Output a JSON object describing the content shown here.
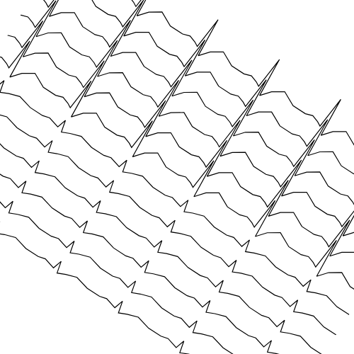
{
  "chart_data": {
    "type": "line",
    "x": [
      0,
      0.1,
      0.2,
      0.26,
      0.3,
      0.34,
      0.45,
      0.6,
      0.8,
      1,
      1.1,
      1.2,
      1.26,
      1.3,
      1.34,
      1.45,
      1.6,
      1.8,
      2,
      2.1,
      2.2,
      2.26,
      2.3,
      2.34,
      2.45,
      2.6,
      2.8,
      3,
      3.1,
      3.2,
      3.26,
      3.3,
      3.34,
      3.45,
      3.6,
      3.8,
      4,
      4.1,
      4.2,
      4.26,
      4.3,
      4.34,
      4.45,
      4.6,
      4.8,
      5,
      5.1,
      5.2,
      5.26,
      5.3,
      5.34,
      5.45,
      5.6,
      5.8,
      6
    ],
    "xlim": [
      0,
      6
    ],
    "ylim": [
      -1,
      12.8
    ],
    "grid": false,
    "tick_labels": false,
    "series": [
      {
        "color": "#000000",
        "values": [
          11,
          11.1,
          11,
          10.9,
          12.3,
          10.6,
          11,
          11.3,
          11,
          11,
          11.1,
          11,
          10.9,
          12.3,
          10.6,
          11,
          11.3,
          11,
          11,
          11.1,
          11,
          10.9,
          12.3,
          10.6,
          11,
          11.3,
          11,
          11,
          11.1,
          11,
          10.9,
          12.3,
          10.6,
          11,
          11.3,
          11,
          11,
          11.1,
          11,
          10.9,
          12.3,
          10.6,
          11,
          11.3,
          11,
          11,
          11.1,
          11,
          10.9,
          12.3,
          10.6,
          11,
          11.3,
          11,
          11
        ]
      },
      {
        "color": "#000000",
        "values": [
          10,
          10.1,
          10,
          9.9,
          11.3,
          9.6,
          10,
          10.3,
          10,
          10,
          10.1,
          10,
          9.9,
          11.3,
          9.6,
          10,
          10.3,
          10,
          10,
          10.1,
          10,
          9.9,
          11.3,
          9.6,
          10,
          10.3,
          10,
          10,
          10.1,
          10,
          9.9,
          11.3,
          9.6,
          10,
          10.3,
          10,
          10,
          10.1,
          10,
          9.9,
          11.3,
          9.6,
          10,
          10.3,
          10,
          10,
          10.1,
          10,
          9.9,
          11.3,
          9.6,
          10,
          10.3,
          10,
          10
        ]
      },
      {
        "color": "#000000",
        "values": [
          9,
          9.1,
          9,
          8.9,
          10.3,
          8.6,
          9,
          9.3,
          9,
          9,
          9.1,
          9,
          8.9,
          10.3,
          8.6,
          9,
          9.3,
          9,
          9,
          9.1,
          9,
          8.9,
          10.3,
          8.6,
          9,
          9.3,
          9,
          9,
          9.1,
          9,
          8.9,
          10.3,
          8.6,
          9,
          9.3,
          9,
          9,
          9.1,
          9,
          8.9,
          10.3,
          8.6,
          9,
          9.3,
          9,
          9,
          9.1,
          9,
          8.9,
          10.3,
          8.6,
          9,
          9.3,
          9,
          9
        ]
      },
      {
        "color": "#000000",
        "values": [
          8,
          8.1,
          8,
          7.9,
          9.3,
          7.6,
          8,
          8.3,
          8,
          8,
          8.1,
          8,
          7.9,
          9.3,
          7.6,
          8,
          8.3,
          8,
          8,
          8.1,
          8,
          7.9,
          9.3,
          7.6,
          8,
          8.3,
          8,
          8,
          8.1,
          8,
          7.9,
          9.3,
          7.6,
          8,
          8.3,
          8,
          8,
          8.1,
          8,
          7.9,
          9.3,
          7.6,
          8,
          8.3,
          8,
          8,
          8.1,
          8,
          7.9,
          9.3,
          7.6,
          8,
          8.3,
          8,
          8
        ]
      },
      {
        "color": "#000000",
        "values": [
          7,
          7.1,
          7,
          6.9,
          8.3,
          6.6,
          7,
          7.3,
          7,
          7,
          7.1,
          7,
          6.9,
          8.3,
          6.6,
          7,
          7.3,
          7,
          7,
          7.1,
          7,
          6.9,
          8.3,
          6.6,
          7,
          7.3,
          7,
          7,
          7.1,
          7,
          6.9,
          8.3,
          6.6,
          7,
          7.3,
          7,
          7,
          7.1,
          7,
          6.9,
          8.3,
          6.6,
          7,
          7.3,
          7,
          7,
          7.1,
          7,
          6.9,
          8.3,
          6.6,
          7,
          7.3,
          7,
          7
        ]
      },
      {
        "color": "#000000",
        "values": [
          6,
          6.1,
          6,
          5.9,
          7.3,
          5.6,
          6,
          6.3,
          6,
          6,
          6.1,
          6,
          5.9,
          7.3,
          5.6,
          6,
          6.3,
          6,
          6,
          6.1,
          6,
          5.9,
          7.3,
          5.6,
          6,
          6.3,
          6,
          6,
          6.1,
          6,
          5.9,
          7.3,
          5.6,
          6,
          6.3,
          6,
          6,
          6.1,
          6,
          5.9,
          7.3,
          5.6,
          6,
          6.3,
          6,
          6,
          6.1,
          6,
          5.9,
          7.3,
          5.6,
          6,
          6.3,
          6,
          6
        ]
      },
      {
        "color": "#000000",
        "values": [
          5,
          5.08,
          5,
          4.95,
          5.35,
          4.85,
          5,
          5.15,
          5,
          5,
          5.08,
          5,
          4.95,
          5.35,
          4.85,
          5,
          5.15,
          5,
          5,
          5.08,
          5,
          4.95,
          5.35,
          4.85,
          5,
          5.15,
          5,
          5,
          5.08,
          5,
          4.95,
          5.35,
          4.85,
          5,
          5.15,
          5,
          5,
          5.08,
          5,
          4.95,
          5.35,
          4.85,
          5,
          5.15,
          5,
          5,
          5.08,
          5,
          4.95,
          5.35,
          4.85,
          5,
          5.15,
          5,
          5
        ]
      },
      {
        "color": "#000000",
        "values": [
          4,
          4.08,
          4,
          3.95,
          4.35,
          3.85,
          4,
          4.15,
          4,
          4,
          4.08,
          4,
          3.95,
          4.35,
          3.85,
          4,
          4.15,
          4,
          4,
          4.08,
          4,
          3.95,
          4.35,
          3.85,
          4,
          4.15,
          4,
          4,
          4.08,
          4,
          3.95,
          4.35,
          3.85,
          4,
          4.15,
          4,
          4,
          4.08,
          4,
          3.95,
          4.35,
          3.85,
          4,
          4.15,
          4,
          4,
          4.08,
          4,
          3.95,
          4.35,
          3.85,
          4,
          4.15,
          4,
          4
        ]
      },
      {
        "color": "#000000",
        "values": [
          3,
          3.08,
          3,
          2.95,
          3.35,
          2.85,
          3,
          3.15,
          3,
          3,
          3.08,
          3,
          2.95,
          3.35,
          2.85,
          3,
          3.15,
          3,
          3,
          3.08,
          3,
          2.95,
          3.35,
          2.85,
          3,
          3.15,
          3,
          3,
          3.08,
          3,
          2.95,
          3.35,
          2.85,
          3,
          3.15,
          3,
          3,
          3.08,
          3,
          2.95,
          3.35,
          2.85,
          3,
          3.15,
          3,
          3,
          3.08,
          3,
          2.95,
          3.35,
          2.85,
          3,
          3.15,
          3,
          3
        ]
      },
      {
        "color": "#000000",
        "values": [
          2,
          2.08,
          2,
          1.95,
          2.35,
          1.85,
          2,
          2.15,
          2,
          2,
          2.08,
          2,
          1.95,
          2.35,
          1.85,
          2,
          2.15,
          2,
          2,
          2.08,
          2,
          1.95,
          2.35,
          1.85,
          2,
          2.15,
          2,
          2,
          2.08,
          2,
          1.95,
          2.35,
          1.85,
          2,
          2.15,
          2,
          2,
          2.08,
          2,
          1.95,
          2.35,
          1.85,
          2,
          2.15,
          2,
          2,
          2.08,
          2,
          1.95,
          2.35,
          1.85,
          2,
          2.15,
          2,
          2
        ]
      },
      {
        "color": "#000000",
        "values": [
          1,
          1.08,
          1,
          0.95,
          1.35,
          0.85,
          1,
          1.15,
          1,
          1,
          1.08,
          1,
          0.95,
          1.35,
          0.85,
          1,
          1.15,
          1,
          1,
          1.08,
          1,
          0.95,
          1.35,
          0.85,
          1,
          1.15,
          1,
          1,
          1.08,
          1,
          0.95,
          1.35,
          0.85,
          1,
          1.15,
          1,
          1,
          1.08,
          1,
          0.95,
          1.35,
          0.85,
          1,
          1.15,
          1,
          1,
          1.08,
          1,
          0.95,
          1.35,
          0.85,
          1,
          1.15,
          1,
          1
        ]
      },
      {
        "color": "#000000",
        "values": [
          0,
          0.08,
          0,
          -0.05,
          0.35,
          -0.15,
          0,
          0.15,
          0,
          0,
          0.08,
          0,
          -0.05,
          0.35,
          -0.15,
          0,
          0.15,
          0,
          0,
          0.08,
          0,
          -0.05,
          0.35,
          -0.15,
          0,
          0.15,
          0,
          0,
          0.08,
          0,
          -0.05,
          0.35,
          -0.15,
          0,
          0.15,
          0,
          0,
          0.08,
          0,
          -0.05,
          0.35,
          -0.15,
          0,
          0.15,
          0,
          0,
          0.08,
          0,
          -0.05,
          0.35,
          -0.15,
          0,
          0.15,
          0,
          0
        ]
      }
    ]
  }
}
